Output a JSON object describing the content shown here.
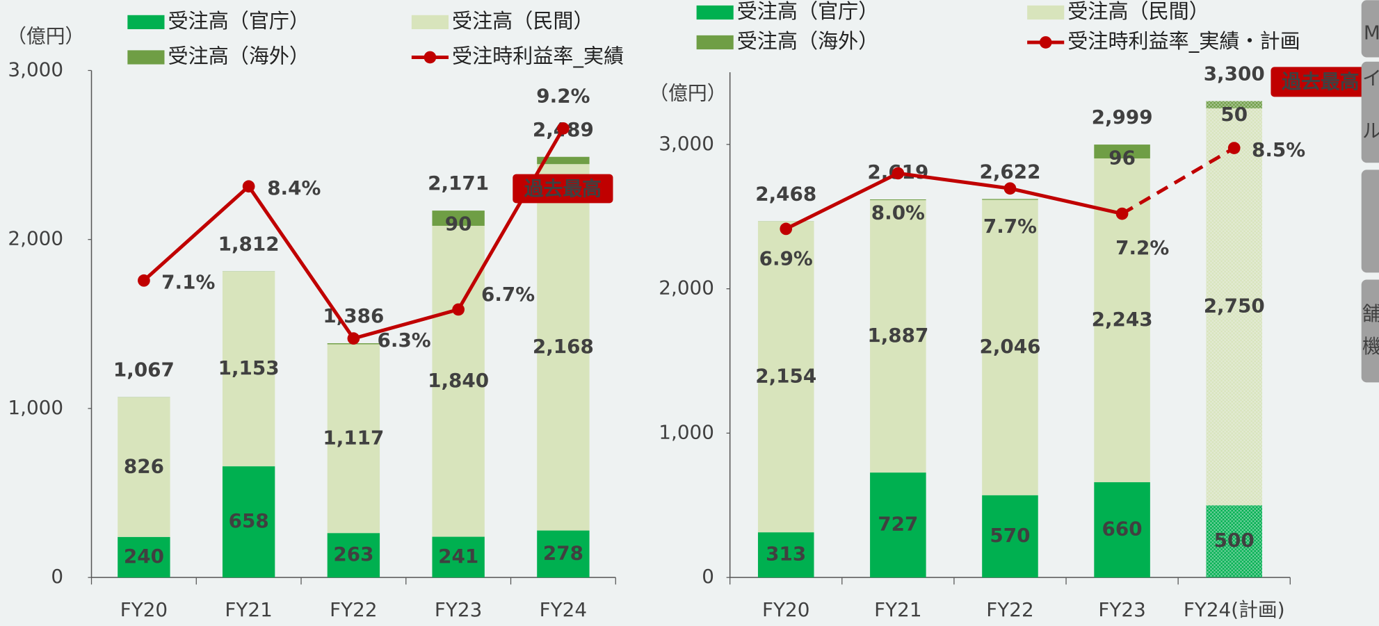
{
  "chart_data": [
    {
      "type": "bar_line",
      "y_unit": "（億円）",
      "categories": [
        "FY20",
        "FY21",
        "FY22",
        "FY23",
        "FY24"
      ],
      "series": [
        {
          "name": "受注高（官庁）",
          "color": "#00b050",
          "values": [
            240,
            658,
            263,
            241,
            278
          ]
        },
        {
          "name": "受注高（民間）",
          "color": "#d8e4bc",
          "values": [
            826,
            1153,
            1117,
            1840,
            2168
          ],
          "value_labels": [
            "826",
            "1,153",
            "1,117",
            "1,840",
            "2,168"
          ]
        },
        {
          "name": "受注高（海外）",
          "color": "#6f9e45",
          "values": [
            1,
            1,
            6,
            90,
            43
          ],
          "value_labels": [
            null,
            null,
            null,
            "90",
            null
          ]
        },
        {
          "name": "受注時利益率_実績",
          "color": "#c00000",
          "type": "line",
          "axis": "y2",
          "values": [
            7.1,
            8.4,
            6.3,
            6.7,
            9.2
          ],
          "value_labels": [
            "7.1%",
            "8.4%",
            "6.3%",
            "6.7%",
            "9.2%"
          ]
        }
      ],
      "totals": [
        1067,
        1812,
        1386,
        2171,
        2489
      ],
      "total_labels": [
        "1,067",
        "1,812",
        "1,386",
        "2,171",
        "2,489"
      ],
      "ylim": [
        0,
        3000
      ],
      "yticks": [
        0,
        {
          "value": 1000,
          "label": "1,000"
        },
        {
          "value": 2000,
          "label": "2,000"
        },
        {
          "value": 3000,
          "label": "3,000"
        }
      ],
      "y2lim": [
        3,
        10
      ],
      "annotation": "過去最高"
    },
    {
      "type": "bar_line",
      "y_unit": "（億円）",
      "categories": [
        "FY20",
        "FY21",
        "FY22",
        "FY23",
        "FY24(計画)"
      ],
      "forecast": [
        false,
        false,
        false,
        false,
        true
      ],
      "series": [
        {
          "name": "受注高（官庁）",
          "color": "#00b050",
          "values": [
            313,
            727,
            570,
            660,
            500
          ]
        },
        {
          "name": "受注高（民間）",
          "color": "#d8e4bc",
          "values": [
            2154,
            1887,
            2046,
            2243,
            2750
          ],
          "value_labels": [
            "2,154",
            "1,887",
            "2,046",
            "2,243",
            "2,750"
          ]
        },
        {
          "name": "受注高（海外）",
          "color": "#6f9e45",
          "values": [
            1,
            5,
            6,
            96,
            50
          ],
          "value_labels": [
            null,
            null,
            null,
            "96",
            "50"
          ]
        },
        {
          "name": "受注時利益率_実績・計画",
          "color": "#c00000",
          "type": "line",
          "axis": "y2",
          "values": [
            6.9,
            8.0,
            7.7,
            7.2,
            8.5
          ],
          "value_labels": [
            "6.9%",
            "8.0%",
            "7.7%",
            "7.2%",
            "8.5%"
          ]
        }
      ],
      "totals": [
        2468,
        2619,
        2622,
        2999,
        3300
      ],
      "total_labels": [
        "2,468",
        "2,619",
        "2,622",
        "2,999",
        "3,300"
      ],
      "ylim": [
        0,
        3500
      ],
      "yticks": [
        0,
        {
          "value": 1000,
          "label": "1,000"
        },
        {
          "value": 2000,
          "label": "2,000"
        },
        {
          "value": 3000,
          "label": "3,000"
        }
      ],
      "y2lim": [
        0,
        10
      ],
      "annotation": "過去最高"
    }
  ],
  "sidebar": [
    "M",
    "イ",
    "ル",
    "舗",
    "機"
  ]
}
